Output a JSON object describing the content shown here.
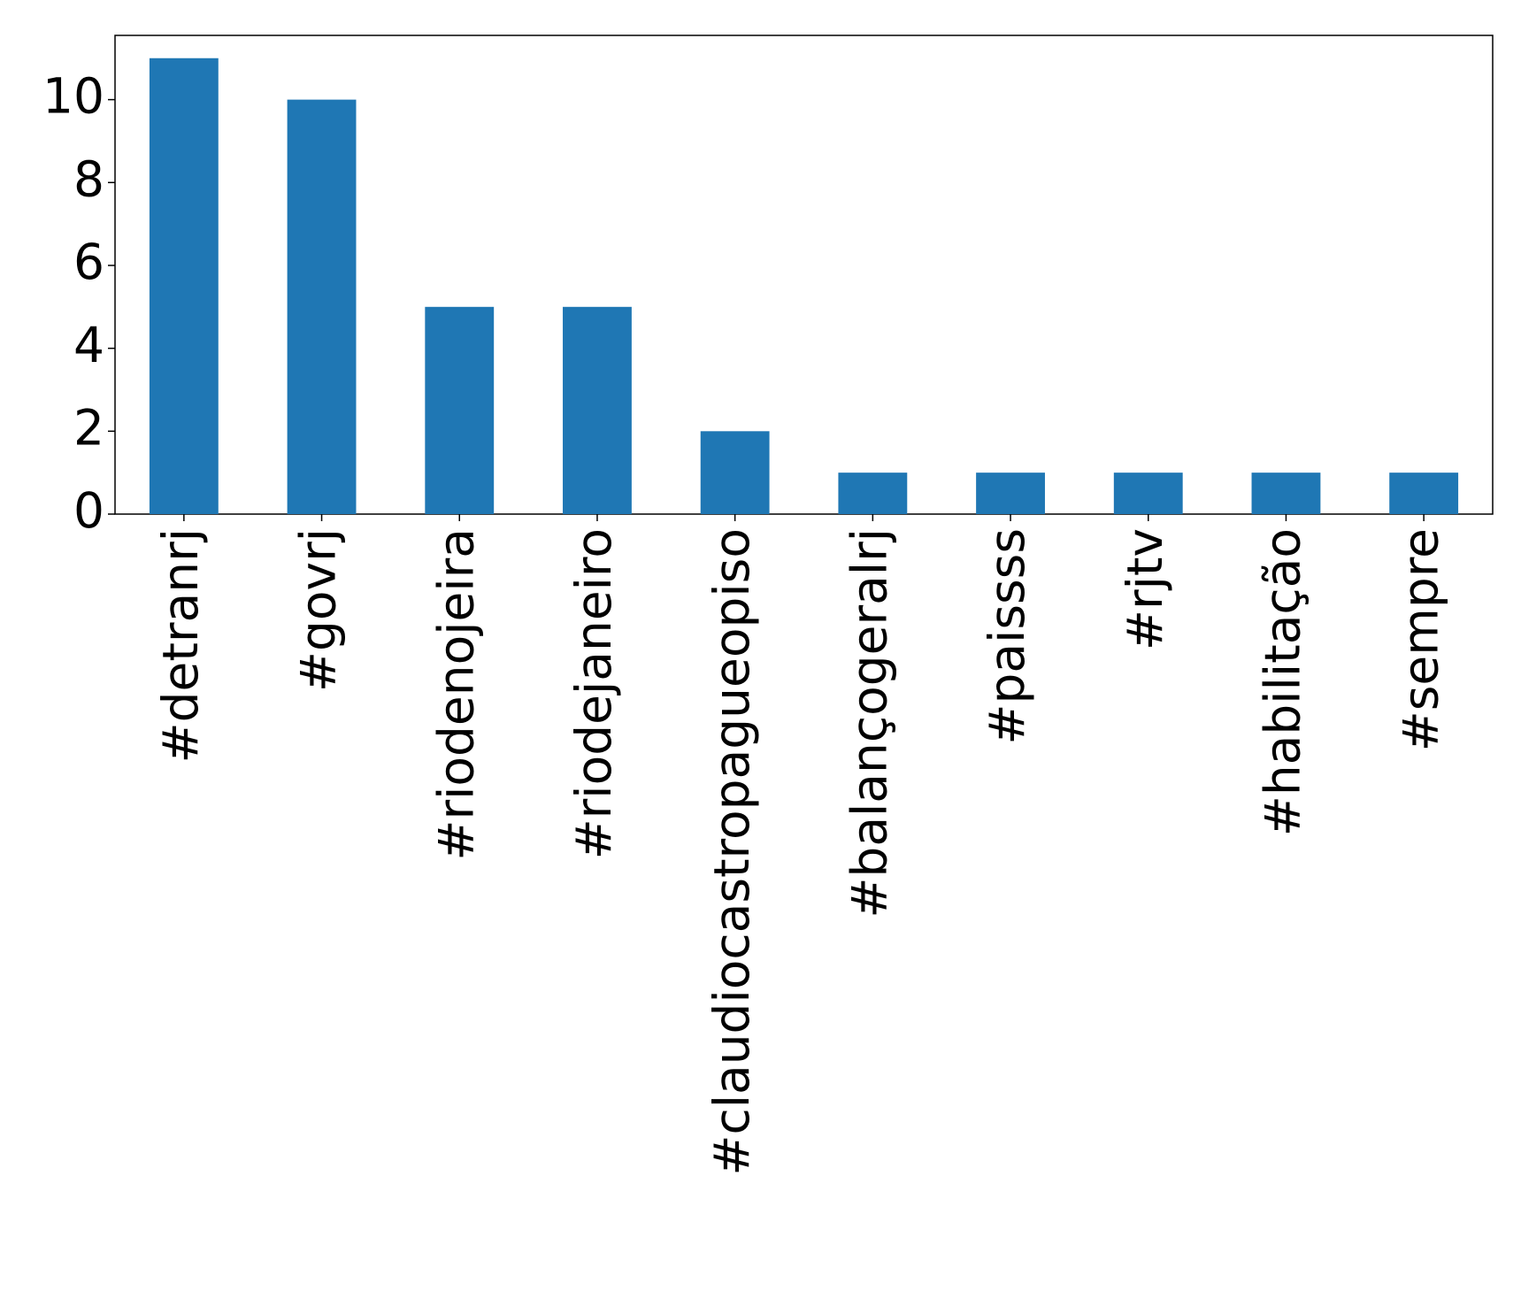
{
  "chart_data": {
    "type": "bar",
    "categories": [
      "#detranrj",
      "#govrj",
      "#riodenojeira",
      "#riodejaneiro",
      "#claudiocastropagueopiso",
      "#balançogeralrj",
      "#paissss",
      "#rjtv",
      "#habilitação",
      "#sempre"
    ],
    "values": [
      11,
      10,
      5,
      5,
      2,
      1,
      1,
      1,
      1,
      1
    ],
    "color": "#1f77b4",
    "ylim": [
      0,
      11.55
    ],
    "yticks": [
      0,
      2,
      4,
      6,
      8,
      10
    ],
    "grid": false
  }
}
